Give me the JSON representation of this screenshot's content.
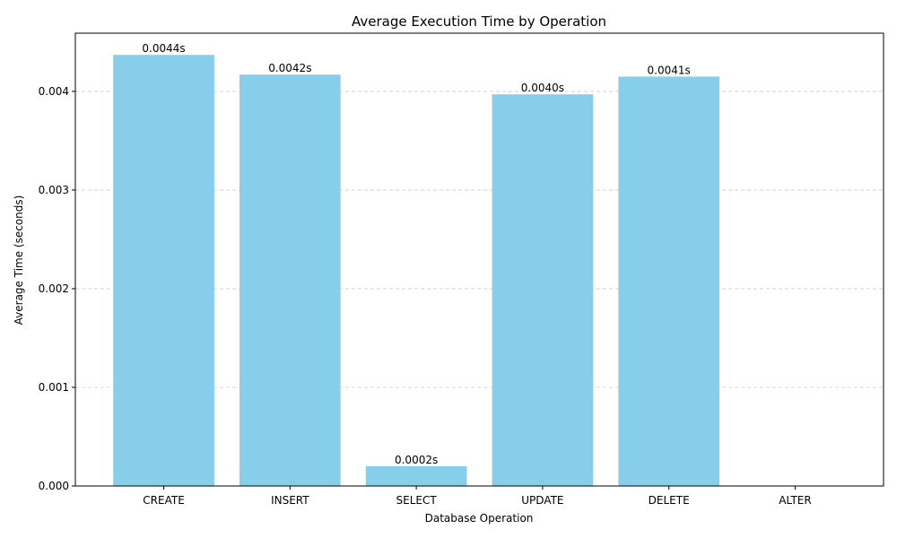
{
  "chart_data": {
    "type": "bar",
    "title": "Average Execution Time by Operation",
    "xlabel": "Database Operation",
    "ylabel": "Average Time (seconds)",
    "categories": [
      "CREATE",
      "INSERT",
      "SELECT",
      "UPDATE",
      "DELETE",
      "ALTER"
    ],
    "values": [
      0.00437,
      0.00417,
      0.0002,
      0.00397,
      0.00415,
      0
    ],
    "data_labels": [
      "0.0044s",
      "0.0042s",
      "0.0002s",
      "0.0040s",
      "0.0041s",
      ""
    ],
    "yticks": [
      0,
      0.001,
      0.002,
      0.003,
      0.004
    ],
    "ytick_labels": [
      "0.000",
      "0.001",
      "0.002",
      "0.003",
      "0.004"
    ],
    "ylim": [
      0,
      0.00459
    ],
    "grid": "y-dashed",
    "bar_color": "#87ceeb"
  }
}
